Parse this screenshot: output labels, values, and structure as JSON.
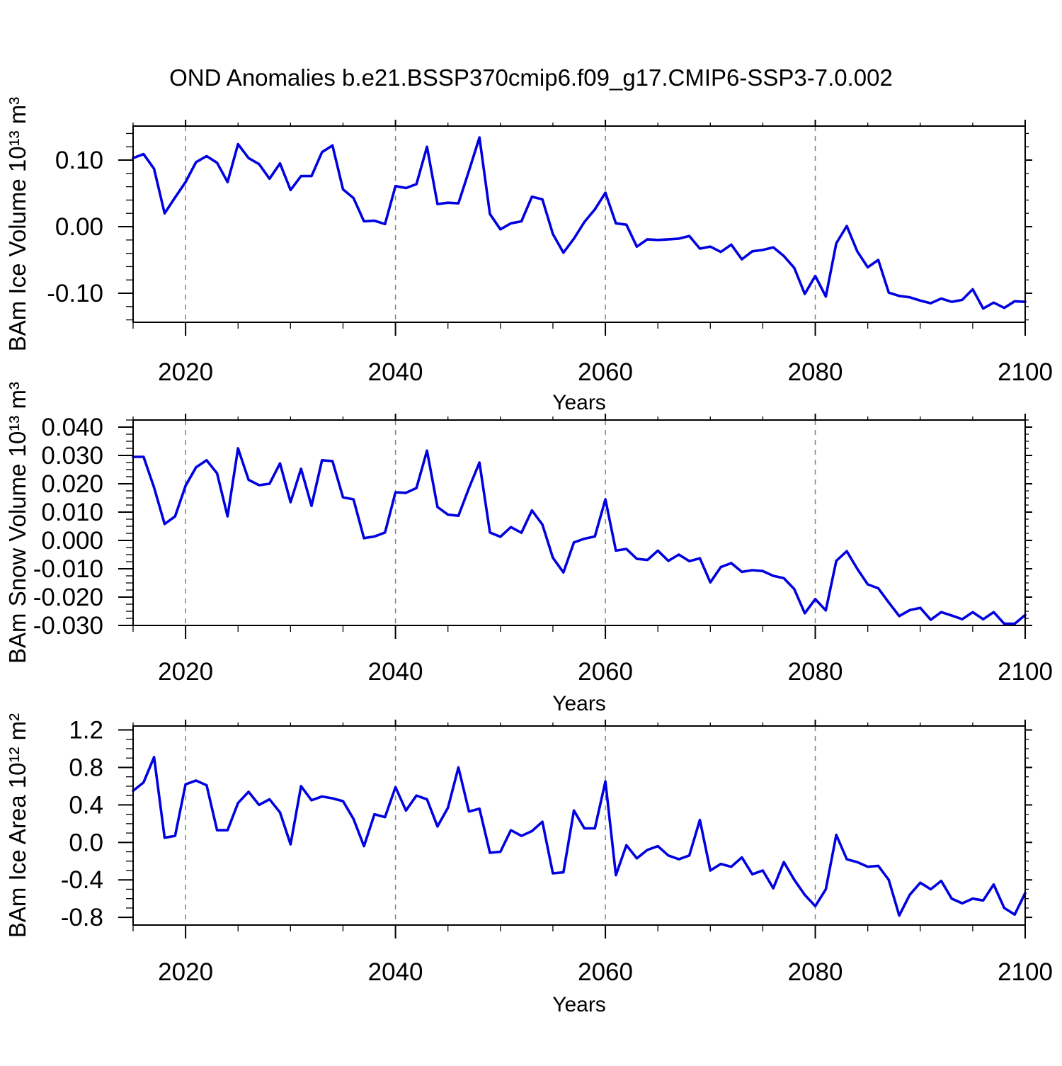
{
  "title": "OND Anomalies b.e21.BSSP370cmip6.f09_g17.CMIP6-SSP3-7.0.002",
  "colors": {
    "line": "#0000e0",
    "grid": "#7f7f7f",
    "axis": "#000000",
    "text": "#000000",
    "background": "#ffffff"
  },
  "x_axis": {
    "label": "Years",
    "tick_labels": [
      "2020",
      "2040",
      "2060",
      "2080",
      "2100"
    ]
  },
  "chart_data": [
    {
      "id": "ice-volume",
      "type": "line",
      "ylabel": "BAm Ice Volume 10¹³ m³",
      "xlabel": "Years",
      "xlim": [
        2015,
        2100
      ],
      "ylim": [
        -0.1436,
        0.1511
      ],
      "x_ticks": [
        2020,
        2040,
        2060,
        2080,
        2100
      ],
      "x_minor_step": 5,
      "grid_x": [
        2020,
        2040,
        2060,
        2080
      ],
      "y_ticks": {
        "values": [
          0.1,
          0.0,
          -0.1
        ],
        "labels": [
          "0.10",
          "0.00",
          "-0.10"
        ],
        "minor_step": 0.02
      },
      "x": [
        2015,
        2016,
        2017,
        2018,
        2019,
        2020,
        2021,
        2022,
        2023,
        2024,
        2025,
        2026,
        2027,
        2028,
        2029,
        2030,
        2031,
        2032,
        2033,
        2034,
        2035,
        2036,
        2037,
        2038,
        2039,
        2040,
        2041,
        2042,
        2043,
        2044,
        2045,
        2046,
        2047,
        2048,
        2049,
        2050,
        2051,
        2052,
        2053,
        2054,
        2055,
        2056,
        2057,
        2058,
        2059,
        2060,
        2061,
        2062,
        2063,
        2064,
        2065,
        2066,
        2067,
        2068,
        2069,
        2070,
        2071,
        2072,
        2073,
        2074,
        2075,
        2076,
        2077,
        2078,
        2079,
        2080,
        2081,
        2082,
        2083,
        2084,
        2085,
        2086,
        2087,
        2088,
        2089,
        2090,
        2091,
        2092,
        2093,
        2094,
        2095,
        2096,
        2097,
        2098,
        2099,
        2100
      ],
      "values": [
        0.103,
        0.109,
        0.087,
        0.02,
        0.044,
        0.067,
        0.097,
        0.106,
        0.096,
        0.067,
        0.124,
        0.103,
        0.094,
        0.072,
        0.095,
        0.055,
        0.076,
        0.076,
        0.112,
        0.122,
        0.056,
        0.043,
        0.008,
        0.009,
        0.004,
        0.061,
        0.058,
        0.064,
        0.12,
        0.034,
        0.036,
        0.035,
        0.084,
        0.134,
        0.019,
        -0.004,
        0.005,
        0.008,
        0.045,
        0.041,
        -0.011,
        -0.039,
        -0.018,
        0.007,
        0.026,
        0.051,
        0.005,
        0.003,
        -0.03,
        -0.019,
        -0.02,
        -0.019,
        -0.018,
        -0.014,
        -0.033,
        -0.03,
        -0.038,
        -0.027,
        -0.049,
        -0.037,
        -0.035,
        -0.031,
        -0.044,
        -0.062,
        -0.101,
        -0.074,
        -0.105,
        -0.025,
        0.001,
        -0.037,
        -0.061,
        -0.05,
        -0.099,
        -0.104,
        -0.106,
        -0.111,
        -0.115,
        -0.108,
        -0.113,
        -0.11,
        -0.094,
        -0.123,
        -0.114,
        -0.122,
        -0.112,
        -0.113
      ]
    },
    {
      "id": "snow-volume",
      "type": "line",
      "ylabel": "BAm Snow Volume 10¹³ m³",
      "xlabel": "Years",
      "xlim": [
        2015,
        2100
      ],
      "ylim": [
        -0.03,
        0.0425
      ],
      "x_ticks": [
        2020,
        2040,
        2060,
        2080,
        2100
      ],
      "x_minor_step": 5,
      "grid_x": [
        2020,
        2040,
        2060,
        2080
      ],
      "y_ticks": {
        "values": [
          0.04,
          0.03,
          0.02,
          0.01,
          0.0,
          -0.01,
          -0.02,
          -0.03
        ],
        "labels": [
          "0.040",
          "0.030",
          "0.020",
          "0.010",
          "0.000",
          "-0.010",
          "-0.020",
          "-0.030"
        ],
        "minor_step": 0.0025
      },
      "x": [
        2015,
        2016,
        2017,
        2018,
        2019,
        2020,
        2021,
        2022,
        2023,
        2024,
        2025,
        2026,
        2027,
        2028,
        2029,
        2030,
        2031,
        2032,
        2033,
        2034,
        2035,
        2036,
        2037,
        2038,
        2039,
        2040,
        2041,
        2042,
        2043,
        2044,
        2045,
        2046,
        2047,
        2048,
        2049,
        2050,
        2051,
        2052,
        2053,
        2054,
        2055,
        2056,
        2057,
        2058,
        2059,
        2060,
        2061,
        2062,
        2063,
        2064,
        2065,
        2066,
        2067,
        2068,
        2069,
        2070,
        2071,
        2072,
        2073,
        2074,
        2075,
        2076,
        2077,
        2078,
        2079,
        2080,
        2081,
        2082,
        2083,
        2084,
        2085,
        2086,
        2087,
        2088,
        2089,
        2090,
        2091,
        2092,
        2093,
        2094,
        2095,
        2096,
        2097,
        2098,
        2099,
        2100
      ],
      "values": [
        0.0295,
        0.0295,
        0.0187,
        0.0058,
        0.0085,
        0.0193,
        0.0258,
        0.0283,
        0.0237,
        0.0085,
        0.0325,
        0.0214,
        0.0195,
        0.02,
        0.0272,
        0.0135,
        0.0253,
        0.0122,
        0.0283,
        0.028,
        0.0152,
        0.0145,
        0.0008,
        0.0014,
        0.0028,
        0.017,
        0.0168,
        0.0185,
        0.0317,
        0.0118,
        0.0091,
        0.0087,
        0.0185,
        0.0275,
        0.0028,
        0.0013,
        0.0047,
        0.0027,
        0.0106,
        0.0056,
        -0.0061,
        -0.0113,
        -0.0007,
        0.0006,
        0.0014,
        0.0145,
        -0.0036,
        -0.003,
        -0.0065,
        -0.0069,
        -0.0036,
        -0.0072,
        -0.005,
        -0.0073,
        -0.0063,
        -0.0148,
        -0.0094,
        -0.008,
        -0.0111,
        -0.0105,
        -0.0108,
        -0.0125,
        -0.0133,
        -0.0172,
        -0.0257,
        -0.0207,
        -0.0247,
        -0.0072,
        -0.0038,
        -0.01,
        -0.0155,
        -0.0169,
        -0.0219,
        -0.0267,
        -0.0246,
        -0.0238,
        -0.028,
        -0.0253,
        -0.0265,
        -0.0278,
        -0.0253,
        -0.0278,
        -0.0253,
        -0.0294,
        -0.0294,
        -0.0263
      ]
    },
    {
      "id": "ice-area",
      "type": "line",
      "ylabel": "BAm Ice Area 10¹² m²",
      "xlabel": "Years",
      "xlim": [
        2015,
        2100
      ],
      "ylim": [
        -0.882,
        1.242
      ],
      "x_ticks": [
        2020,
        2040,
        2060,
        2080,
        2100
      ],
      "x_minor_step": 5,
      "grid_x": [
        2020,
        2040,
        2060,
        2080
      ],
      "y_ticks": {
        "values": [
          1.2,
          0.8,
          0.4,
          0.0,
          -0.4,
          -0.8
        ],
        "labels": [
          "1.2",
          "0.8",
          "0.4",
          "0.0",
          "-0.4",
          "-0.8"
        ],
        "minor_step": 0.1
      },
      "x": [
        2015,
        2016,
        2017,
        2018,
        2019,
        2020,
        2021,
        2022,
        2023,
        2024,
        2025,
        2026,
        2027,
        2028,
        2029,
        2030,
        2031,
        2032,
        2033,
        2034,
        2035,
        2036,
        2037,
        2038,
        2039,
        2040,
        2041,
        2042,
        2043,
        2044,
        2045,
        2046,
        2047,
        2048,
        2049,
        2050,
        2051,
        2052,
        2053,
        2054,
        2055,
        2056,
        2057,
        2058,
        2059,
        2060,
        2061,
        2062,
        2063,
        2064,
        2065,
        2066,
        2067,
        2068,
        2069,
        2070,
        2071,
        2072,
        2073,
        2074,
        2075,
        2076,
        2077,
        2078,
        2079,
        2080,
        2081,
        2082,
        2083,
        2084,
        2085,
        2086,
        2087,
        2088,
        2089,
        2090,
        2091,
        2092,
        2093,
        2094,
        2095,
        2096,
        2097,
        2098,
        2099,
        2100
      ],
      "values": [
        0.55,
        0.64,
        0.91,
        0.05,
        0.07,
        0.62,
        0.66,
        0.61,
        0.13,
        0.13,
        0.42,
        0.54,
        0.4,
        0.46,
        0.32,
        -0.02,
        0.6,
        0.45,
        0.49,
        0.47,
        0.44,
        0.25,
        -0.04,
        0.3,
        0.27,
        0.59,
        0.34,
        0.5,
        0.46,
        0.17,
        0.37,
        0.8,
        0.33,
        0.36,
        -0.11,
        -0.1,
        0.13,
        0.07,
        0.12,
        0.22,
        -0.33,
        -0.32,
        0.34,
        0.15,
        0.15,
        0.65,
        -0.35,
        -0.03,
        -0.17,
        -0.08,
        -0.04,
        -0.14,
        -0.18,
        -0.14,
        0.24,
        -0.3,
        -0.23,
        -0.26,
        -0.16,
        -0.34,
        -0.3,
        -0.49,
        -0.21,
        -0.4,
        -0.56,
        -0.68,
        -0.5,
        0.08,
        -0.18,
        -0.21,
        -0.26,
        -0.25,
        -0.4,
        -0.78,
        -0.56,
        -0.43,
        -0.5,
        -0.41,
        -0.6,
        -0.65,
        -0.6,
        -0.62,
        -0.45,
        -0.7,
        -0.77,
        -0.54
      ]
    }
  ]
}
